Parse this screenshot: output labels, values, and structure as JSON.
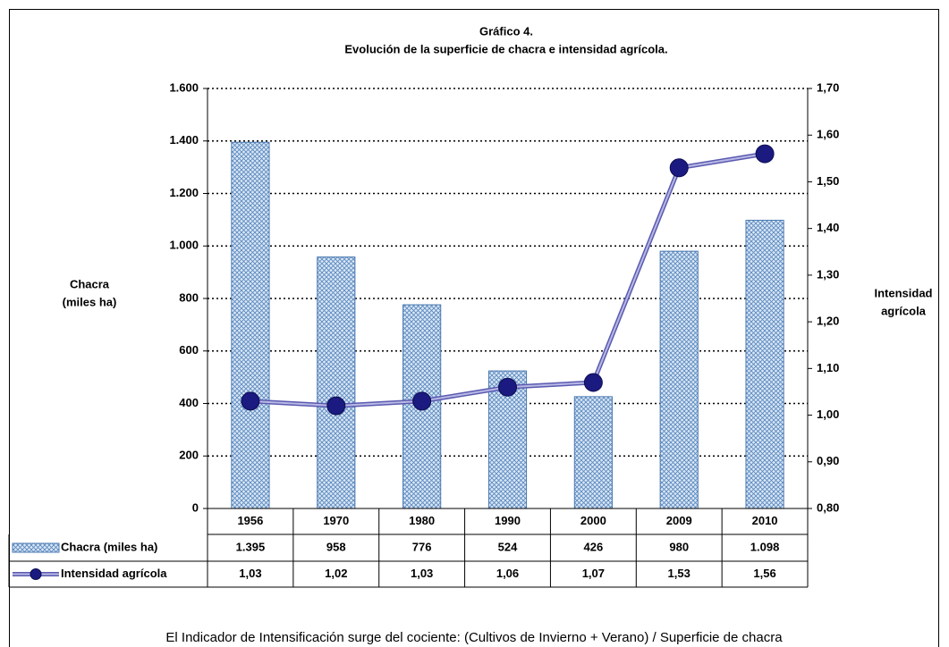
{
  "chart_data": {
    "type": "bar_line",
    "title": [
      "Gráfico 4.",
      "Evolución de la superficie de chacra e intensidad agrícola."
    ],
    "y_label": [
      "Chacra",
      "(miles ha)"
    ],
    "y2_label": [
      "Intensidad",
      "agrícola"
    ],
    "categories": [
      "1956",
      "1970",
      "1980",
      "1990",
      "2000",
      "2009",
      "2010"
    ],
    "series": [
      {
        "name": "Chacra (miles ha)",
        "type": "bar",
        "color": "#9fc3e6",
        "values": [
          1395,
          958,
          776,
          524,
          426,
          980,
          1098
        ],
        "value_labels": [
          "1.395",
          "958",
          "776",
          "524",
          "426",
          "980",
          "1.098"
        ]
      },
      {
        "name": "Intensidad agrícola",
        "type": "line",
        "axis": "y2",
        "color": "#1a1a80",
        "values": [
          1.03,
          1.02,
          1.03,
          1.06,
          1.07,
          1.53,
          1.56
        ],
        "value_labels": [
          "1,03",
          "1,02",
          "1,03",
          "1,06",
          "1,07",
          "1,53",
          "1,56"
        ]
      }
    ],
    "ylim": [
      0,
      1600
    ],
    "yticks": [
      0,
      200,
      400,
      600,
      800,
      {
        "value": 1000,
        "label": "1.000"
      },
      {
        "value": 1200,
        "label": "1.200"
      },
      {
        "value": 1400,
        "label": "1.400"
      },
      {
        "value": 1600,
        "label": "1.600"
      }
    ],
    "y2lim": [
      0.8,
      1.7
    ],
    "y2ticks": [
      {
        "value": 0.8,
        "label": "0,80"
      },
      {
        "value": 0.9,
        "label": "0,90"
      },
      {
        "value": 1.0,
        "label": "1,00"
      },
      {
        "value": 1.1,
        "label": "1,10"
      },
      {
        "value": 1.2,
        "label": "1,20"
      },
      {
        "value": 1.3,
        "label": "1,30"
      },
      {
        "value": 1.4,
        "label": "1,40"
      },
      {
        "value": 1.5,
        "label": "1,50"
      },
      {
        "value": 1.6,
        "label": "1,60"
      },
      {
        "value": 1.7,
        "label": "1,70"
      }
    ],
    "grid": true,
    "footnote": "El Indicador de Intensificación surge del cociente: (Cultivos de Invierno + Verano) / Superficie de chacra"
  }
}
